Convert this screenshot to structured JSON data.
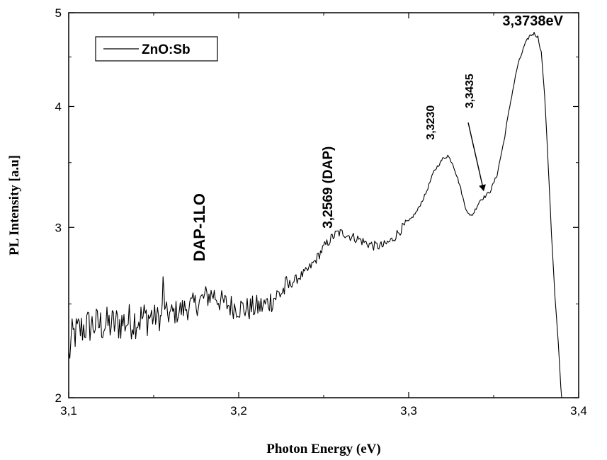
{
  "chart_data": {
    "type": "line",
    "title": "",
    "xlabel": "Photon Energy (eV)",
    "ylabel": "PL Intensity [a.u]",
    "xlim": [
      3.1,
      3.4
    ],
    "ylim": [
      2,
      5
    ],
    "yscale": "log",
    "grid": false,
    "legend_position": "top-left",
    "x_ticks": [
      "3,1",
      "3,2",
      "3,3",
      "3,4"
    ],
    "y_ticks": [
      "2",
      "3",
      "4",
      "5"
    ],
    "series": [
      {
        "name": "ZnO:Sb",
        "color": "#000000",
        "points": [
          [
            3.1,
            2.2
          ],
          [
            3.102,
            2.31
          ],
          [
            3.105,
            2.34
          ],
          [
            3.11,
            2.37
          ],
          [
            3.115,
            2.38
          ],
          [
            3.12,
            2.38
          ],
          [
            3.125,
            2.38
          ],
          [
            3.13,
            2.39
          ],
          [
            3.135,
            2.4
          ],
          [
            3.14,
            2.41
          ],
          [
            3.145,
            2.42
          ],
          [
            3.15,
            2.43
          ],
          [
            3.1545,
            2.41
          ],
          [
            3.1555,
            2.62
          ],
          [
            3.157,
            2.44
          ],
          [
            3.16,
            2.44
          ],
          [
            3.165,
            2.46
          ],
          [
            3.17,
            2.48
          ],
          [
            3.175,
            2.5
          ],
          [
            3.18,
            2.54
          ],
          [
            3.185,
            2.56
          ],
          [
            3.19,
            2.51
          ],
          [
            3.195,
            2.49
          ],
          [
            3.2,
            2.48
          ],
          [
            3.205,
            2.47
          ],
          [
            3.21,
            2.48
          ],
          [
            3.215,
            2.49
          ],
          [
            3.22,
            2.53
          ],
          [
            3.225,
            2.57
          ],
          [
            3.23,
            2.62
          ],
          [
            3.235,
            2.66
          ],
          [
            3.24,
            2.7
          ],
          [
            3.245,
            2.77
          ],
          [
            3.25,
            2.86
          ],
          [
            3.255,
            2.93
          ],
          [
            3.258,
            2.96
          ],
          [
            3.262,
            2.96
          ],
          [
            3.265,
            2.94
          ],
          [
            3.27,
            2.92
          ],
          [
            3.275,
            2.89
          ],
          [
            3.28,
            2.87
          ],
          [
            3.285,
            2.87
          ],
          [
            3.29,
            2.91
          ],
          [
            3.295,
            2.98
          ],
          [
            3.3,
            3.04
          ],
          [
            3.305,
            3.12
          ],
          [
            3.31,
            3.25
          ],
          [
            3.315,
            3.43
          ],
          [
            3.32,
            3.53
          ],
          [
            3.323,
            3.56
          ],
          [
            3.326,
            3.49
          ],
          [
            3.33,
            3.32
          ],
          [
            3.333,
            3.16
          ],
          [
            3.336,
            3.08
          ],
          [
            3.338,
            3.1
          ],
          [
            3.342,
            3.2
          ],
          [
            3.345,
            3.23
          ],
          [
            3.348,
            3.27
          ],
          [
            3.352,
            3.4
          ],
          [
            3.356,
            3.68
          ],
          [
            3.36,
            4.05
          ],
          [
            3.364,
            4.4
          ],
          [
            3.368,
            4.62
          ],
          [
            3.371,
            4.73
          ],
          [
            3.3738,
            4.76
          ],
          [
            3.376,
            4.72
          ],
          [
            3.378,
            4.55
          ],
          [
            3.38,
            4.1
          ],
          [
            3.382,
            3.5
          ],
          [
            3.384,
            2.95
          ],
          [
            3.386,
            2.55
          ],
          [
            3.388,
            2.28
          ],
          [
            3.3895,
            2.05
          ],
          [
            3.39,
            2.0
          ]
        ]
      }
    ],
    "annotations": [
      {
        "text": "DAP-1LO",
        "x": 3.18,
        "y": 3.0,
        "rotation": -90
      },
      {
        "text": "3,2569 (DAP)",
        "x": 3.255,
        "y": 3.3,
        "rotation": -90
      },
      {
        "text": "3,3230",
        "x": 3.315,
        "y": 3.85,
        "rotation": -90
      },
      {
        "text": "3,3435",
        "x": 3.338,
        "y": 4.15,
        "rotation": -90
      },
      {
        "text": "3,3738eV",
        "x": 3.373,
        "y": 4.85,
        "rotation": 0
      }
    ],
    "arrow": {
      "from": [
        3.335,
        3.85
      ],
      "to": [
        3.344,
        3.28
      ]
    }
  },
  "colors": {
    "line": "#000000",
    "axis": "#000000",
    "background": "#ffffff"
  }
}
